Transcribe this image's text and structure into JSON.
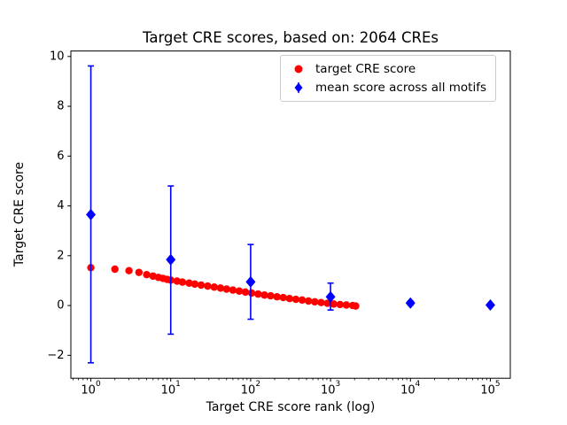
{
  "chart_data": {
    "type": "scatter",
    "title": "Target CRE scores, based on: 2064 CREs",
    "xlabel": "Target CRE score rank (log)",
    "ylabel": "Target CRE score",
    "x_scale": "log",
    "xlim_log10": [
      -0.25,
      5.25
    ],
    "ylim": [
      -2.92,
      10.22
    ],
    "x_tick_exponents": [
      0,
      1,
      2,
      3,
      4,
      5
    ],
    "y_ticks": [
      -2,
      0,
      2,
      4,
      6,
      8,
      10
    ],
    "grid": false,
    "legend_position": "upper-right",
    "series": [
      {
        "name": "target CRE score",
        "kind": "scatter",
        "marker": "circle",
        "color": "#ff0000",
        "points": [
          [
            1,
            1.52
          ],
          [
            2,
            1.46
          ],
          [
            3,
            1.4
          ],
          [
            4,
            1.33
          ],
          [
            5,
            1.24
          ],
          [
            6,
            1.18
          ],
          [
            7,
            1.13
          ],
          [
            8,
            1.09
          ],
          [
            9,
            1.05
          ],
          [
            10,
            1.02
          ],
          [
            12,
            0.98
          ],
          [
            14,
            0.94
          ],
          [
            17,
            0.9
          ],
          [
            20,
            0.86
          ],
          [
            24,
            0.82
          ],
          [
            29,
            0.78
          ],
          [
            35,
            0.74
          ],
          [
            42,
            0.7
          ],
          [
            50,
            0.66
          ],
          [
            60,
            0.62
          ],
          [
            72,
            0.58
          ],
          [
            86,
            0.54
          ],
          [
            103,
            0.5
          ],
          [
            124,
            0.46
          ],
          [
            149,
            0.42
          ],
          [
            178,
            0.39
          ],
          [
            214,
            0.35
          ],
          [
            256,
            0.32
          ],
          [
            307,
            0.28
          ],
          [
            368,
            0.25
          ],
          [
            442,
            0.22
          ],
          [
            530,
            0.18
          ],
          [
            635,
            0.15
          ],
          [
            762,
            0.12
          ],
          [
            914,
            0.09
          ],
          [
            1096,
            0.06
          ],
          [
            1315,
            0.04
          ],
          [
            1577,
            0.02
          ],
          [
            1892,
            0.0
          ],
          [
            2064,
            -0.02
          ]
        ]
      },
      {
        "name": "mean score across all motifs",
        "kind": "errorbar",
        "marker": "diamond",
        "color": "#0000ff",
        "points": [
          {
            "x": 1,
            "y": 3.65,
            "ylow": -2.3,
            "yhigh": 9.62
          },
          {
            "x": 10,
            "y": 1.84,
            "ylow": -1.15,
            "yhigh": 4.8
          },
          {
            "x": 100,
            "y": 0.95,
            "ylow": -0.55,
            "yhigh": 2.45
          },
          {
            "x": 1000,
            "y": 0.35,
            "ylow": -0.18,
            "yhigh": 0.9
          },
          {
            "x": 10000,
            "y": 0.1,
            "ylow": 0.02,
            "yhigh": 0.18
          },
          {
            "x": 100000,
            "y": 0.02,
            "ylow": -0.02,
            "yhigh": 0.06
          }
        ]
      }
    ]
  }
}
